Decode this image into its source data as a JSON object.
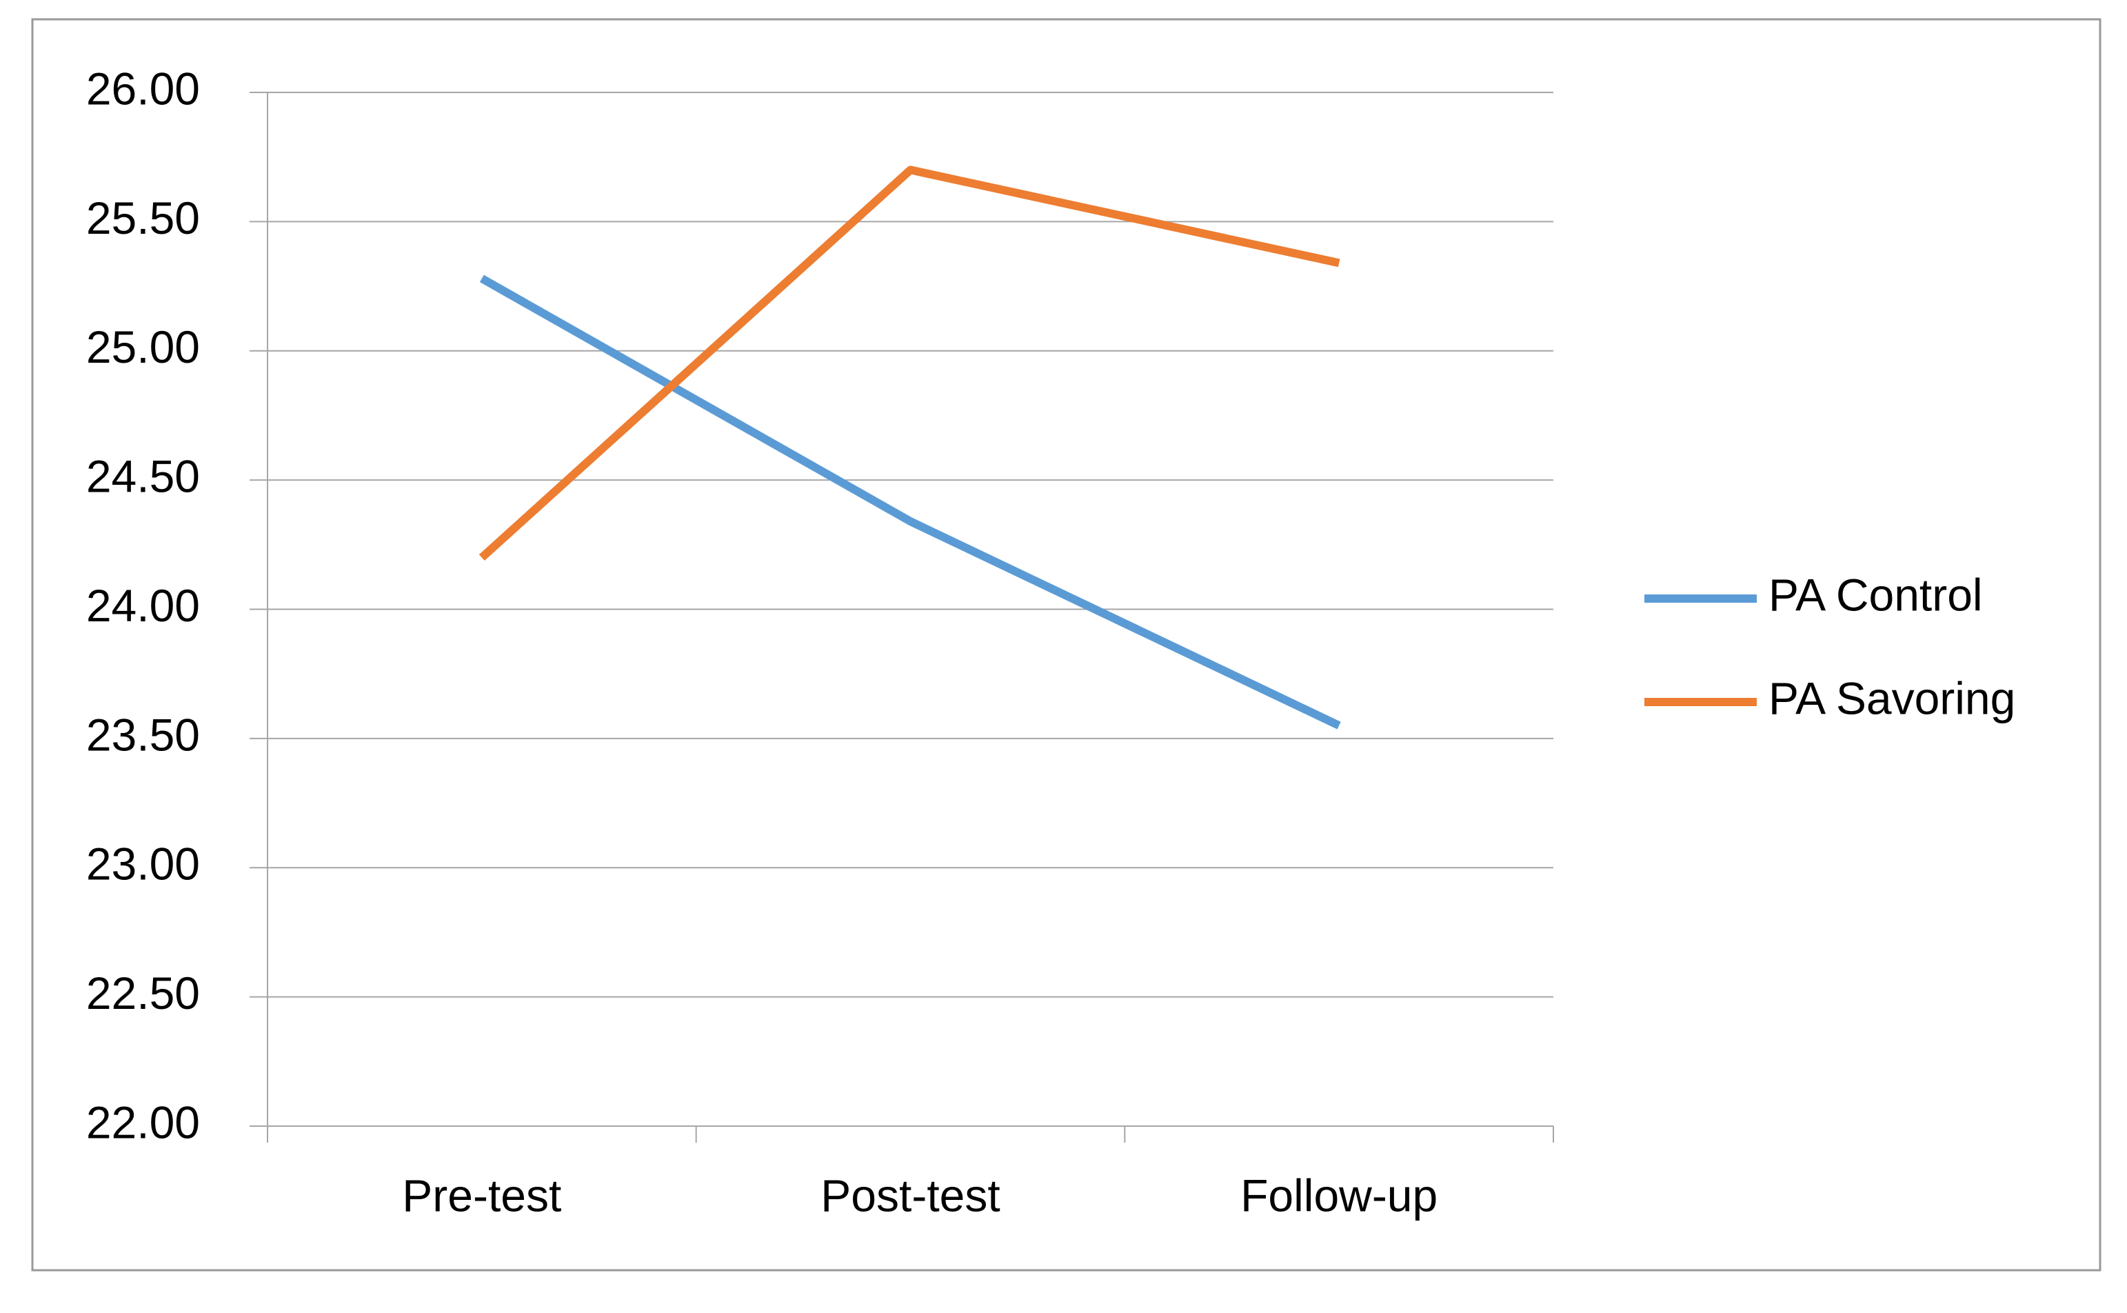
{
  "chart_data": {
    "type": "line",
    "categories": [
      "Pre-test",
      "Post-test",
      "Follow-up"
    ],
    "series": [
      {
        "name": "PA Control",
        "color": "#5b9bd5",
        "values": [
          25.28,
          24.34,
          23.55
        ]
      },
      {
        "name": "PA Savoring",
        "color": "#ed7d31",
        "values": [
          24.2,
          25.7,
          25.34
        ]
      }
    ],
    "ylim": [
      22,
      26
    ],
    "yticks": [
      {
        "value": 22,
        "label": "22.00"
      },
      {
        "value": 22.5,
        "label": "22.50"
      },
      {
        "value": 23,
        "label": "23.00"
      },
      {
        "value": 23.5,
        "label": "23.50"
      },
      {
        "value": 24,
        "label": "24.00"
      },
      {
        "value": 24.5,
        "label": "24.50"
      },
      {
        "value": 25,
        "label": "25.00"
      },
      {
        "value": 25.5,
        "label": "25.50"
      },
      {
        "value": 26,
        "label": "26.00"
      }
    ],
    "grid": true,
    "legend": "right"
  }
}
